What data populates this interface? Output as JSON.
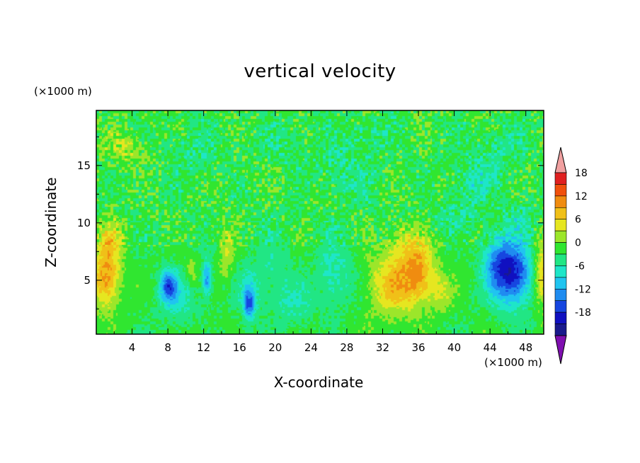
{
  "chart_data": {
    "type": "heatmap",
    "title": "vertical velocity",
    "xlabel": "X-coordinate",
    "ylabel": "Z-coordinate",
    "x_unit": "(×1000 m)",
    "y_unit": "(×1000 m)",
    "xlim": [
      0,
      50
    ],
    "ylim": [
      0.3,
      19.8
    ],
    "x_ticks": [
      "4",
      "8",
      "12",
      "16",
      "20",
      "24",
      "28",
      "32",
      "36",
      "40",
      "44",
      "48"
    ],
    "y_ticks": [
      "5",
      "10",
      "15"
    ],
    "colorbar": {
      "tick_labels": [
        "18",
        "12",
        "6",
        "0",
        "-6",
        "-12",
        "-18"
      ],
      "levels": [
        -21,
        -18,
        -15,
        -12,
        -9,
        -6,
        -3,
        0,
        3,
        6,
        9,
        12,
        15,
        18,
        21
      ],
      "colors": [
        "#7f0fb0",
        "#1a1a8c",
        "#1010c0",
        "#1646e0",
        "#1f8cf0",
        "#20c4f0",
        "#1ee6c8",
        "#21e684",
        "#30e630",
        "#9ce62a",
        "#e6e620",
        "#f0c018",
        "#f08c10",
        "#f0500c",
        "#e02020",
        "#f0a0a0"
      ]
    },
    "anomalies": [
      {
        "x": 1.0,
        "z": 5.2,
        "v": 12,
        "sx": 1.5,
        "sz": 2.6
      },
      {
        "x": 1.5,
        "z": 8.5,
        "v": 6,
        "sx": 1.4,
        "sz": 2.0
      },
      {
        "x": 8.0,
        "z": 4.6,
        "v": -12,
        "sx": 0.9,
        "sz": 1.3
      },
      {
        "x": 9.0,
        "z": 3.5,
        "v": -5,
        "sx": 2.2,
        "sz": 2.0
      },
      {
        "x": 12.3,
        "z": 5.2,
        "v": -11,
        "sx": 0.5,
        "sz": 1.6
      },
      {
        "x": 10.5,
        "z": 5.8,
        "v": 4,
        "sx": 0.6,
        "sz": 1.2
      },
      {
        "x": 14.5,
        "z": 7.5,
        "v": 5,
        "sx": 0.8,
        "sz": 2.2
      },
      {
        "x": 17.0,
        "z": 3.0,
        "v": -11,
        "sx": 0.6,
        "sz": 1.4
      },
      {
        "x": 17.0,
        "z": 4.0,
        "v": -4,
        "sx": 1.4,
        "sz": 2.2
      },
      {
        "x": 19.5,
        "z": 6.0,
        "v": -3,
        "sx": 2.0,
        "sz": 3.0
      },
      {
        "x": 22.0,
        "z": 3.0,
        "v": -4,
        "sx": 2.0,
        "sz": 2.0
      },
      {
        "x": 26.5,
        "z": 5.5,
        "v": -5,
        "sx": 2.0,
        "sz": 3.0
      },
      {
        "x": 33.0,
        "z": 4.5,
        "v": 9,
        "sx": 2.6,
        "sz": 2.6
      },
      {
        "x": 36.0,
        "z": 5.5,
        "v": 10,
        "sx": 1.8,
        "sz": 2.5
      },
      {
        "x": 34.5,
        "z": 8.0,
        "v": 5,
        "sx": 2.5,
        "sz": 2.0
      },
      {
        "x": 38.5,
        "z": 4.0,
        "v": 5,
        "sx": 1.2,
        "sz": 1.6
      },
      {
        "x": 46.5,
        "z": 5.6,
        "v": -17,
        "sx": 2.0,
        "sz": 2.7
      },
      {
        "x": 44.5,
        "z": 6.5,
        "v": -8,
        "sx": 1.5,
        "sz": 2.5
      },
      {
        "x": 49.8,
        "z": 5.5,
        "v": 10,
        "sx": 0.9,
        "sz": 2.6
      },
      {
        "x": 42.0,
        "z": 13.5,
        "v": -4,
        "sx": 2.5,
        "sz": 2.0
      },
      {
        "x": 28.0,
        "z": 14.5,
        "v": -3,
        "sx": 3.0,
        "sz": 2.5
      },
      {
        "x": 3.0,
        "z": 16.5,
        "v": 4,
        "sx": 2.5,
        "sz": 1.6
      },
      {
        "x": 11.0,
        "z": 16.5,
        "v": -3,
        "sx": 2.5,
        "sz": 1.8
      },
      {
        "x": 21.0,
        "z": 17.0,
        "v": -2,
        "sx": 3.0,
        "sz": 1.8
      },
      {
        "x": 30.0,
        "z": 18.0,
        "v": -2,
        "sx": 3.0,
        "sz": 1.5
      },
      {
        "x": 45.0,
        "z": 16.5,
        "v": -3,
        "sx": 2.5,
        "sz": 2.0
      },
      {
        "x": 40.0,
        "z": 10.5,
        "v": -2,
        "sx": 3.0,
        "sz": 1.5
      },
      {
        "x": 47.0,
        "z": 10.5,
        "v": -3,
        "sx": 1.5,
        "sz": 1.5
      }
    ]
  }
}
